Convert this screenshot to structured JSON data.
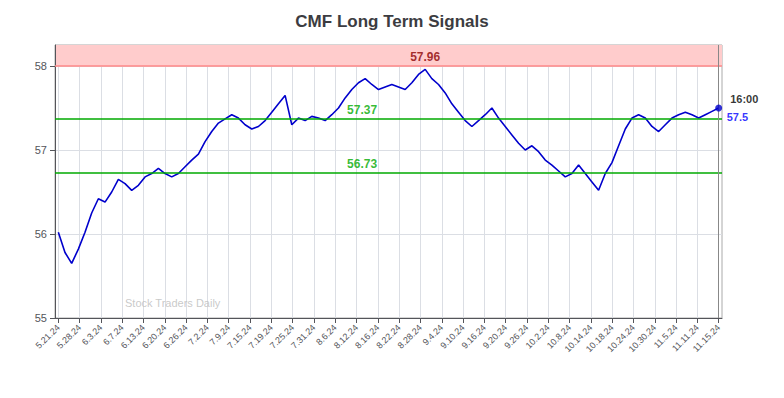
{
  "chart_data": {
    "type": "line",
    "title": "CMF Long Term Signals",
    "x": [
      0,
      1,
      2,
      3,
      4,
      5,
      6,
      7,
      8,
      9,
      10,
      11,
      12,
      13,
      14,
      15,
      16,
      17,
      18,
      19,
      20,
      21,
      22,
      23,
      24,
      25,
      26,
      27,
      28,
      29,
      30,
      31,
      32,
      33,
      34,
      35,
      36,
      37,
      38,
      39,
      40,
      41,
      42,
      43,
      44,
      45,
      46,
      47,
      48,
      49,
      50,
      51,
      52,
      53,
      54,
      55,
      56,
      57,
      58,
      59,
      60,
      61,
      62,
      63,
      64,
      65,
      66,
      67,
      68,
      69,
      70,
      71,
      72,
      73,
      74,
      75,
      76,
      77,
      78,
      79,
      80,
      81,
      82,
      83,
      84,
      85,
      86,
      87,
      88,
      89,
      90,
      91,
      92,
      93,
      94,
      95,
      96,
      97,
      98,
      99
    ],
    "values": [
      56.02,
      55.78,
      55.65,
      55.82,
      56.02,
      56.25,
      56.42,
      56.38,
      56.5,
      56.65,
      56.6,
      56.52,
      56.58,
      56.68,
      56.72,
      56.78,
      56.72,
      56.68,
      56.72,
      56.8,
      56.88,
      56.95,
      57.1,
      57.22,
      57.32,
      57.37,
      57.42,
      57.38,
      57.3,
      57.25,
      57.28,
      57.35,
      57.45,
      57.55,
      57.65,
      57.3,
      57.38,
      57.35,
      57.4,
      57.38,
      57.35,
      57.42,
      57.5,
      57.62,
      57.72,
      57.8,
      57.85,
      57.78,
      57.72,
      57.75,
      57.78,
      57.75,
      57.72,
      57.8,
      57.9,
      57.96,
      57.85,
      57.78,
      57.68,
      57.55,
      57.45,
      57.35,
      57.28,
      57.35,
      57.42,
      57.5,
      57.38,
      57.28,
      57.18,
      57.08,
      57.0,
      57.05,
      56.98,
      56.88,
      56.82,
      56.75,
      56.68,
      56.72,
      56.82,
      56.72,
      56.62,
      56.52,
      56.72,
      56.85,
      57.05,
      57.25,
      57.38,
      57.42,
      57.38,
      57.28,
      57.22,
      57.3,
      57.38,
      57.42,
      57.45,
      57.42,
      57.38,
      57.42,
      57.46,
      57.5
    ],
    "color": "#0000cc",
    "xlim": [
      -0.5,
      99.5
    ],
    "xticks": [
      {
        "value": 0,
        "label": "5.21.24"
      },
      {
        "value": 3.1935483871,
        "label": "5.28.24"
      },
      {
        "value": 6.3870967742,
        "label": "6.3.24"
      },
      {
        "value": 9.5806451613,
        "label": "6.7.24"
      },
      {
        "value": 12.7741935484,
        "label": "6.13.24"
      },
      {
        "value": 15.9677419355,
        "label": "6.20.24"
      },
      {
        "value": 19.1612903226,
        "label": "6.26.24"
      },
      {
        "value": 22.3548387097,
        "label": "7.2.24"
      },
      {
        "value": 25.5483870968,
        "label": "7.9.24"
      },
      {
        "value": 28.7419354839,
        "label": "7.15.24"
      },
      {
        "value": 31.935483871,
        "label": "7.19.24"
      },
      {
        "value": 35.1290322581,
        "label": "7.25.24"
      },
      {
        "value": 38.3225806452,
        "label": "7.31.24"
      },
      {
        "value": 41.5161290323,
        "label": "8.6.24"
      },
      {
        "value": 44.7096774194,
        "label": "8.12.24"
      },
      {
        "value": 47.9032258065,
        "label": "8.16.24"
      },
      {
        "value": 51.0967741935,
        "label": "8.22.24"
      },
      {
        "value": 54.2903225806,
        "label": "8.28.24"
      },
      {
        "value": 57.4838709677,
        "label": "9.4.24"
      },
      {
        "value": 60.6774193548,
        "label": "9.10.24"
      },
      {
        "value": 63.8709677419,
        "label": "9.16.24"
      },
      {
        "value": 67.064516129,
        "label": "9.20.24"
      },
      {
        "value": 70.2580645161,
        "label": "9.26.24"
      },
      {
        "value": 73.4516129032,
        "label": "10.2.24"
      },
      {
        "value": 76.6451612903,
        "label": "10.8.24"
      },
      {
        "value": 79.8387096774,
        "label": "10.14.24"
      },
      {
        "value": 83.0322580645,
        "label": "10.18.24"
      },
      {
        "value": 86.2258064516,
        "label": "10.24.24"
      },
      {
        "value": 89.4193548387,
        "label": "10.30.24"
      },
      {
        "value": 92.6129032258,
        "label": "11.5.24"
      },
      {
        "value": 95.8064516129,
        "label": "11.11.24"
      },
      {
        "value": 99,
        "label": "11.15.24"
      }
    ],
    "ylim": [
      55.0,
      58.25
    ],
    "yticks": [
      55,
      56,
      57,
      58
    ],
    "grid": true,
    "bands": [
      {
        "from": 58.0,
        "to": 58.25,
        "color": "#ffcccc"
      }
    ],
    "reference_lines": [
      {
        "y": 58.0,
        "color": "#ff8888"
      },
      {
        "y": 57.37,
        "color": "#00aa00"
      },
      {
        "y": 56.73,
        "color": "#00aa00"
      },
      {
        "x": 99,
        "color": "#888888"
      }
    ],
    "annotations": [
      {
        "text": "57.96",
        "x": 55,
        "y": 58.0,
        "color": "#8b0000"
      },
      {
        "text": "57.37",
        "x": 45.54,
        "y": 57.37,
        "color": "#00aa00"
      },
      {
        "text": "56.73",
        "x": 45.54,
        "y": 56.73,
        "color": "#00aa00"
      }
    ],
    "last_labels": [
      {
        "text": "16:00",
        "color": "#000000"
      },
      {
        "text": "57.5",
        "color": "#0000ff"
      }
    ],
    "watermark": "Stock Traders Daily"
  }
}
